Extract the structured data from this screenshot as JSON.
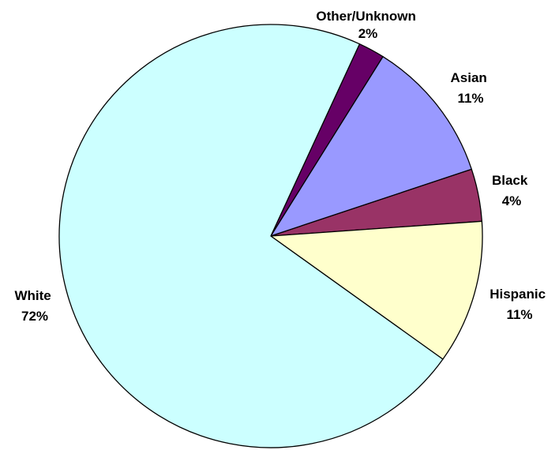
{
  "chart_data": {
    "type": "pie",
    "title": "",
    "start_angle_deg": -65.2,
    "direction": "clockwise",
    "legend": "none",
    "slices": [
      {
        "name": "Other/Unknown",
        "percent_label": "2%",
        "value": 2,
        "color": "#660066"
      },
      {
        "name": "Asian",
        "percent_label": "11%",
        "value": 11,
        "color": "#9999FF"
      },
      {
        "name": "Black",
        "percent_label": "4%",
        "value": 4,
        "color": "#993366"
      },
      {
        "name": "Hispanic",
        "percent_label": "11%",
        "value": 11,
        "color": "#FFFFCC"
      },
      {
        "name": "White",
        "percent_label": "72%",
        "value": 72,
        "color": "#CCFFFF"
      }
    ]
  }
}
